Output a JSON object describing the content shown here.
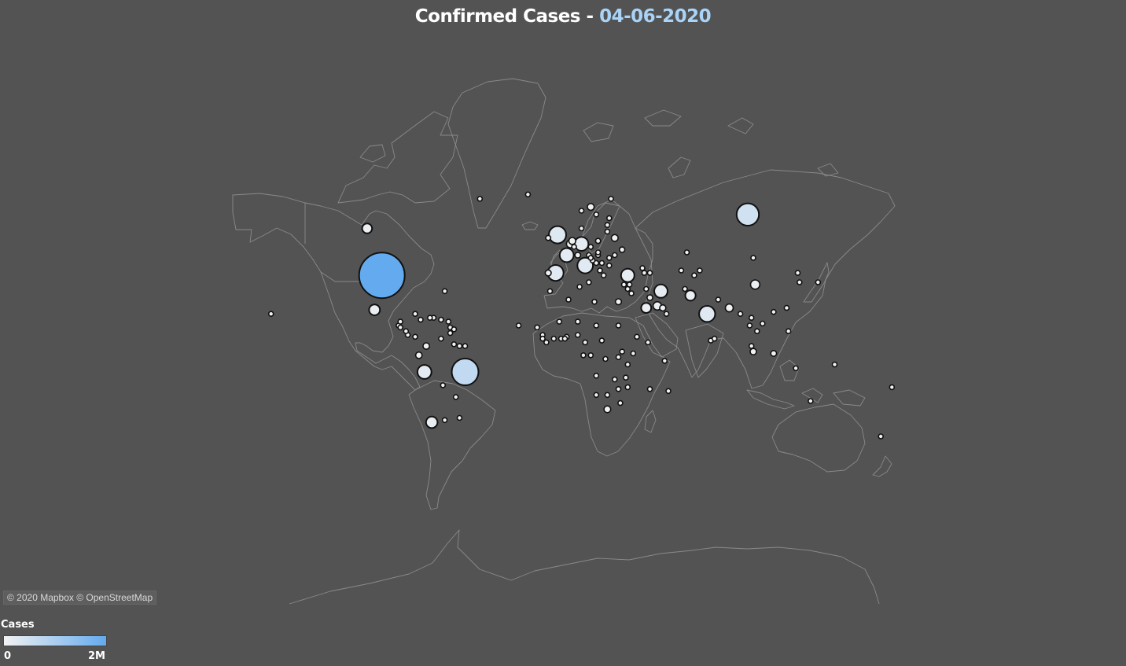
{
  "title": {
    "prefix": "Confirmed Cases - ",
    "date": "04-06-2020"
  },
  "map_credit": "© 2020 Mapbox © OpenStreetMap",
  "legend": {
    "title": "Cases",
    "min_label": "0",
    "max_label": "2M",
    "color_low": "#f2f2f2",
    "color_high": "#64aaee"
  },
  "colors": {
    "background": "#535353",
    "land_outline": "#8a8a8a",
    "marker_stroke": "#111111",
    "title_date": "#a9d3f7"
  },
  "chart_data": {
    "type": "scatter",
    "encoding": "proportional symbol map; marker size and color scale with confirmed cases",
    "size_max_cases": 2000000,
    "points": [
      {
        "lon": -98,
        "lat": 39,
        "cases": 2000000
      },
      {
        "lon": -53,
        "lat": -10,
        "cases": 690000
      },
      {
        "lon": 100,
        "lat": 60,
        "cases": 480000
      },
      {
        "lon": -3,
        "lat": 54,
        "cases": 290000
      },
      {
        "lon": 12,
        "lat": 43,
        "cases": 235000
      },
      {
        "lon": -4,
        "lat": 40,
        "cases": 241000
      },
      {
        "lon": 10,
        "lat": 51,
        "cases": 185000
      },
      {
        "lon": 2,
        "lat": 47,
        "cases": 190000
      },
      {
        "lon": 78,
        "lat": 21,
        "cases": 247000
      },
      {
        "lon": 53,
        "lat": 32,
        "cases": 170000
      },
      {
        "lon": -75,
        "lat": -10,
        "cases": 190000
      },
      {
        "lon": 35,
        "lat": 39,
        "cases": 170000
      },
      {
        "lon": -71,
        "lat": -35,
        "cases": 125000
      },
      {
        "lon": -102,
        "lat": 23,
        "cases": 113000
      },
      {
        "lon": 45,
        "lat": 24,
        "cases": 98000
      },
      {
        "lon": -106,
        "lat": 56,
        "cases": 95000
      },
      {
        "lon": 69,
        "lat": 30,
        "cases": 103000
      },
      {
        "lon": 104,
        "lat": 35,
        "cases": 84000
      },
      {
        "lon": 90,
        "lat": 24,
        "cases": 60000
      },
      {
        "lon": 51,
        "lat": 25,
        "cases": 68000
      },
      {
        "lon": 30,
        "lat": 27,
        "cases": 35000
      },
      {
        "lon": 24,
        "lat": -29,
        "cases": 45000
      },
      {
        "lon": -74,
        "lat": 4,
        "cases": 40000
      },
      {
        "lon": 19,
        "lat": 52,
        "cases": 25000
      },
      {
        "lon": 4,
        "lat": 51,
        "cases": 59000
      },
      {
        "lon": 8,
        "lat": 47,
        "cases": 31000
      },
      {
        "lon": 5,
        "lat": 52,
        "cases": 47000
      },
      {
        "lon": -8,
        "lat": 40,
        "cases": 34000
      },
      {
        "lon": 15,
        "lat": 62,
        "cases": 44000
      },
      {
        "lon": -64,
        "lat": -34,
        "cases": 22000
      },
      {
        "lon": 114,
        "lat": 0,
        "cases": 32000
      },
      {
        "lon": 122,
        "lat": 12,
        "cases": 22000
      },
      {
        "lon": 102,
        "lat": 4,
        "cases": 8000
      },
      {
        "lon": 32,
        "lat": 49,
        "cases": 27000
      },
      {
        "lon": 28,
        "lat": 53,
        "cases": 44000
      },
      {
        "lon": 67,
        "lat": 48,
        "cases": 12000
      },
      {
        "lon": 138,
        "lat": 36,
        "cases": 17000
      },
      {
        "lon": 128,
        "lat": 36,
        "cases": 11700
      },
      {
        "lon": 103,
        "lat": 1,
        "cases": 38000
      },
      {
        "lon": -78,
        "lat": -1,
        "cases": 40000
      },
      {
        "lon": -80,
        "lat": 9,
        "cases": 16000
      },
      {
        "lon": -70,
        "lat": 19,
        "cases": 19000
      },
      {
        "lon": 8,
        "lat": 10,
        "cases": 12000
      },
      {
        "lon": -1,
        "lat": 8,
        "cases": 9000
      },
      {
        "lon": 45,
        "lat": 33,
        "cases": 8000
      },
      {
        "lon": 47,
        "lat": 29,
        "cases": 30000
      },
      {
        "lon": 56,
        "lat": 21,
        "cases": 17000
      },
      {
        "lon": 54,
        "lat": 24,
        "cases": 37000
      },
      {
        "lon": 37,
        "lat": 31,
        "cases": 17000
      },
      {
        "lon": 35,
        "lat": 33,
        "cases": 1300
      },
      {
        "lon": 36,
        "lat": 35,
        "cases": 200
      },
      {
        "lon": 44,
        "lat": 40,
        "cases": 11000
      },
      {
        "lon": 43,
        "lat": 42,
        "cases": 800
      },
      {
        "lon": 47,
        "lat": 40,
        "cases": 7000
      },
      {
        "lon": 64,
        "lat": 41,
        "cases": 4000
      },
      {
        "lon": 74,
        "lat": 41,
        "cases": 2000
      },
      {
        "lon": 71,
        "lat": 39,
        "cases": 4000
      },
      {
        "lon": 66,
        "lat": 33,
        "cases": 20000
      },
      {
        "lon": 84,
        "lat": 28,
        "cases": 3000
      },
      {
        "lon": 80,
        "lat": 7,
        "cases": 1800
      },
      {
        "lon": 96,
        "lat": 21,
        "cases": 200
      },
      {
        "lon": 101,
        "lat": 15,
        "cases": 3100
      },
      {
        "lon": 105,
        "lat": 12,
        "cases": 125
      },
      {
        "lon": 108,
        "lat": 16,
        "cases": 330
      },
      {
        "lon": 102,
        "lat": 19,
        "cases": 19
      },
      {
        "lon": 121,
        "lat": 24,
        "cases": 440
      },
      {
        "lon": 114,
        "lat": 22,
        "cases": 1100
      },
      {
        "lon": 103,
        "lat": 46,
        "cases": 190
      },
      {
        "lon": 127,
        "lat": 40,
        "cases": 0
      },
      {
        "lon": 134,
        "lat": -25,
        "cases": 7200
      },
      {
        "lon": 172,
        "lat": -41,
        "cases": 1500
      },
      {
        "lon": 178,
        "lat": -18,
        "cases": 18
      },
      {
        "lon": 147,
        "lat": -6,
        "cases": 8
      },
      {
        "lon": 126,
        "lat": -8,
        "cases": 24
      },
      {
        "lon": 18,
        "lat": 60,
        "cases": 7000
      },
      {
        "lon": 10,
        "lat": 61,
        "cases": 8500
      },
      {
        "lon": 26,
        "lat": 64,
        "cases": 7100
      },
      {
        "lon": 10,
        "lat": 56,
        "cases": 12000
      },
      {
        "lon": -19,
        "lat": 65,
        "cases": 1800
      },
      {
        "lon": 25,
        "lat": 59,
        "cases": 1900
      },
      {
        "lon": 24,
        "lat": 57,
        "cases": 1100
      },
      {
        "lon": 24,
        "lat": 55,
        "cases": 1700
      },
      {
        "lon": 15,
        "lat": 50,
        "cases": 10000
      },
      {
        "lon": 19,
        "lat": 47,
        "cases": 4100
      },
      {
        "lon": 14,
        "lat": 47,
        "cases": 17000
      },
      {
        "lon": 25,
        "lat": 46,
        "cases": 21000
      },
      {
        "lon": 25,
        "lat": 43,
        "cases": 3400
      },
      {
        "lon": 21,
        "lat": 44,
        "cases": 12000
      },
      {
        "lon": 22,
        "lat": 39,
        "cases": 3300
      },
      {
        "lon": 20,
        "lat": 41,
        "cases": 1200
      },
      {
        "lon": 16,
        "lat": 45,
        "cases": 2200
      },
      {
        "lon": 18,
        "lat": 44,
        "cases": 2900
      },
      {
        "lon": 15,
        "lat": 46,
        "cases": 1500
      },
      {
        "lon": 19,
        "lat": 48,
        "cases": 1600
      },
      {
        "lon": 28,
        "lat": 47,
        "cases": 11000
      },
      {
        "lon": 33,
        "lat": 35,
        "cases": 1000
      },
      {
        "lon": 14,
        "lat": 36,
        "cases": 650
      },
      {
        "lon": -8,
        "lat": 53,
        "cases": 25000
      },
      {
        "lon": 6,
        "lat": 50,
        "cases": 4100
      },
      {
        "lon": -7,
        "lat": 32,
        "cases": 9000
      },
      {
        "lon": 3,
        "lat": 28,
        "cases": 10000
      },
      {
        "lon": 9,
        "lat": 34,
        "cases": 1100
      },
      {
        "lon": 17,
        "lat": 27,
        "cases": 400
      },
      {
        "lon": -2,
        "lat": 17,
        "cases": 1600
      },
      {
        "lon": -14,
        "lat": 14,
        "cases": 5500
      },
      {
        "lon": -11,
        "lat": 10,
        "cases": 4900
      },
      {
        "lon": -5,
        "lat": 8,
        "cases": 9000
      },
      {
        "lon": -11,
        "lat": 8,
        "cases": 1400
      },
      {
        "lon": -9,
        "lat": 6,
        "cases": 800
      },
      {
        "lon": 2,
        "lat": 9,
        "cases": 1100
      },
      {
        "lon": 1,
        "lat": 8,
        "cases": 650
      },
      {
        "lon": 8,
        "lat": 17,
        "cases": 1000
      },
      {
        "lon": 18,
        "lat": 15,
        "cases": 860
      },
      {
        "lon": 12,
        "lat": 6,
        "cases": 13000
      },
      {
        "lon": 21,
        "lat": 7,
        "cases": 4000
      },
      {
        "lon": 30,
        "lat": 15,
        "cases": 10000
      },
      {
        "lon": 40,
        "lat": 9,
        "cases": 6000
      },
      {
        "lon": 46,
        "lat": 6,
        "cases": 2800
      },
      {
        "lon": 38,
        "lat": 0,
        "cases": 10000
      },
      {
        "lon": 32,
        "lat": 1,
        "cases": 900
      },
      {
        "lon": 30,
        "lat": -2,
        "cases": 1000
      },
      {
        "lon": 35,
        "lat": -6,
        "cases": 509
      },
      {
        "lon": 23,
        "lat": -3,
        "cases": 7000
      },
      {
        "lon": 15,
        "lat": -1,
        "cases": 1700
      },
      {
        "lon": 11,
        "lat": -1,
        "cases": 5200
      },
      {
        "lon": 18,
        "lat": -12,
        "cases": 200
      },
      {
        "lon": 28,
        "lat": -14,
        "cases": 1500
      },
      {
        "lon": 30,
        "lat": -19,
        "cases": 700
      },
      {
        "lon": 34,
        "lat": -13,
        "cases": 1300
      },
      {
        "lon": 35,
        "lat": -18,
        "cases": 900
      },
      {
        "lon": 47,
        "lat": -19,
        "cases": 1600
      },
      {
        "lon": 24,
        "lat": -22,
        "cases": 380
      },
      {
        "lon": 18,
        "lat": -22,
        "cases": 900
      },
      {
        "lon": 31,
        "lat": -26,
        "cases": 1000
      },
      {
        "lon": 57,
        "lat": -20,
        "cases": 340
      },
      {
        "lon": 55,
        "lat": -4,
        "cases": 11
      },
      {
        "lon": -24,
        "lat": 15,
        "cases": 1300
      },
      {
        "lon": -89,
        "lat": 15,
        "cases": 20000
      },
      {
        "lon": -88,
        "lat": 14,
        "cases": 14000
      },
      {
        "lon": -85,
        "lat": 12,
        "cases": 2000
      },
      {
        "lon": -84,
        "lat": 10,
        "cases": 2500
      },
      {
        "lon": -88,
        "lat": 17,
        "cases": 24
      },
      {
        "lon": -80,
        "lat": 21,
        "cases": 2300
      },
      {
        "lon": -77,
        "lat": 18,
        "cases": 700
      },
      {
        "lon": -72,
        "lat": 19,
        "cases": 6000
      },
      {
        "lon": -66,
        "lat": 18,
        "cases": 6000
      },
      {
        "lon": -61,
        "lat": 14,
        "cases": 200
      },
      {
        "lon": -61,
        "lat": 11,
        "cases": 130
      },
      {
        "lon": -59,
        "lat": 13,
        "cases": 97
      },
      {
        "lon": -62,
        "lat": 17,
        "cases": 70
      },
      {
        "lon": -66,
        "lat": 8,
        "cases": 2800
      },
      {
        "lon": -59,
        "lat": 5,
        "cases": 200
      },
      {
        "lon": -56,
        "lat": 4,
        "cases": 300
      },
      {
        "lon": -53,
        "lat": 4,
        "cases": 260
      },
      {
        "lon": -65,
        "lat": -17,
        "cases": 22000
      },
      {
        "lon": -58,
        "lat": -23,
        "cases": 1300
      },
      {
        "lon": -56,
        "lat": -33,
        "cases": 850
      },
      {
        "lon": -158,
        "lat": 21,
        "cases": 700
      },
      {
        "lon": -64,
        "lat": 32,
        "cases": 150
      },
      {
        "lon": -45,
        "lat": 64,
        "cases": 13
      },
      {
        "lon": 82,
        "lat": 8,
        "cases": 200
      }
    ]
  }
}
